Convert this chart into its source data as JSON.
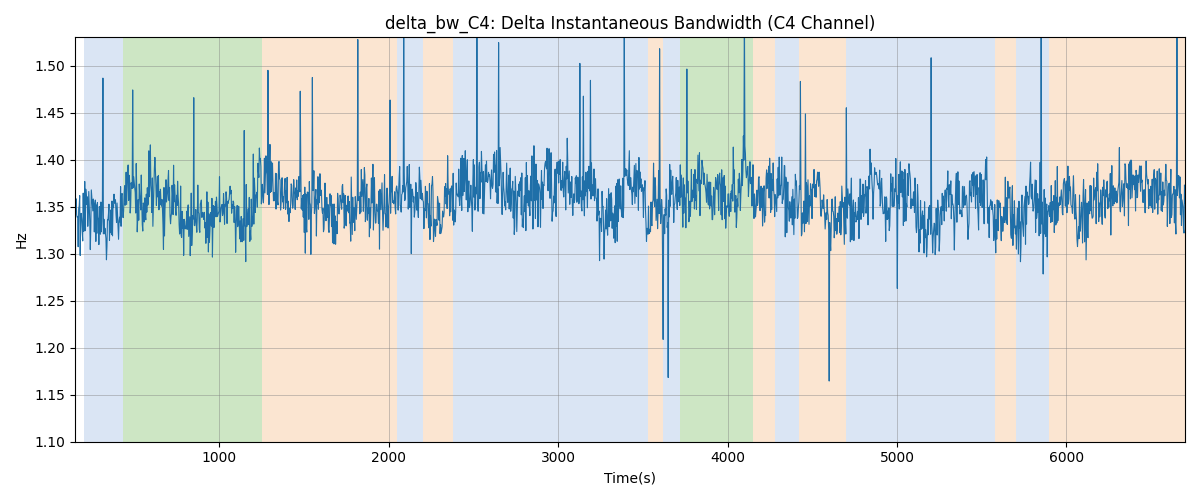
{
  "title": "delta_bw_C4: Delta Instantaneous Bandwidth (C4 Channel)",
  "xlabel": "Time(s)",
  "ylabel": "Hz",
  "ylim": [
    1.1,
    1.53
  ],
  "xlim": [
    150,
    6700
  ],
  "line_color": "#1f6fa8",
  "line_width": 0.8,
  "background_color": "#ffffff",
  "grid": true,
  "bands": [
    {
      "xmin": 200,
      "xmax": 430,
      "color": "#aec6e8",
      "alpha": 0.45
    },
    {
      "xmin": 430,
      "xmax": 1250,
      "color": "#90c97e",
      "alpha": 0.45
    },
    {
      "xmin": 1250,
      "xmax": 2050,
      "color": "#f7c79a",
      "alpha": 0.45
    },
    {
      "xmin": 2050,
      "xmax": 2200,
      "color": "#aec6e8",
      "alpha": 0.45
    },
    {
      "xmin": 2200,
      "xmax": 2380,
      "color": "#f7c79a",
      "alpha": 0.45
    },
    {
      "xmin": 2380,
      "xmax": 3530,
      "color": "#aec6e8",
      "alpha": 0.45
    },
    {
      "xmin": 3530,
      "xmax": 3620,
      "color": "#f7c79a",
      "alpha": 0.45
    },
    {
      "xmin": 3620,
      "xmax": 3720,
      "color": "#aec6e8",
      "alpha": 0.45
    },
    {
      "xmin": 3720,
      "xmax": 4150,
      "color": "#90c97e",
      "alpha": 0.45
    },
    {
      "xmin": 4150,
      "xmax": 4280,
      "color": "#f7c79a",
      "alpha": 0.45
    },
    {
      "xmin": 4280,
      "xmax": 4420,
      "color": "#aec6e8",
      "alpha": 0.45
    },
    {
      "xmin": 4420,
      "xmax": 4700,
      "color": "#f7c79a",
      "alpha": 0.45
    },
    {
      "xmin": 4700,
      "xmax": 5580,
      "color": "#aec6e8",
      "alpha": 0.45
    },
    {
      "xmin": 5580,
      "xmax": 5700,
      "color": "#f7c79a",
      "alpha": 0.45
    },
    {
      "xmin": 5700,
      "xmax": 5900,
      "color": "#aec6e8",
      "alpha": 0.45
    },
    {
      "xmin": 5900,
      "xmax": 6700,
      "color": "#f7c79a",
      "alpha": 0.45
    }
  ],
  "seed": 17,
  "n_points": 2200,
  "signal_mean": 1.355,
  "signal_std": 0.028,
  "figsize": [
    12,
    5
  ],
  "dpi": 100
}
